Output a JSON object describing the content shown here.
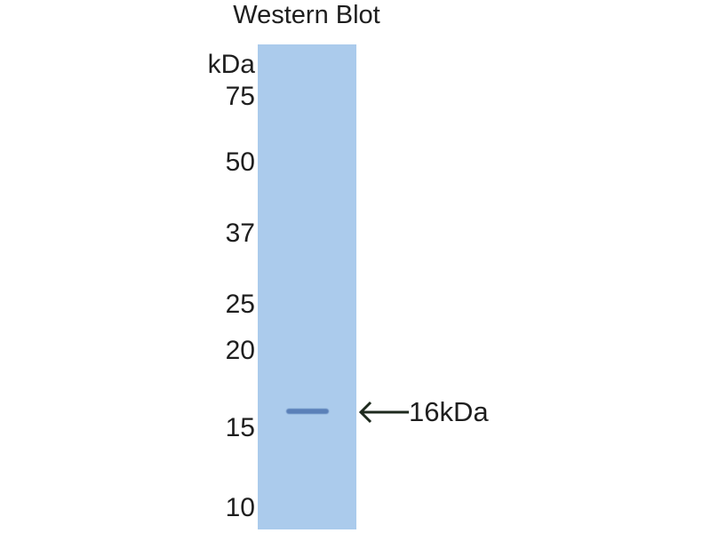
{
  "title": "Western Blot",
  "unit_label": "kDa",
  "markers": [
    "75",
    "50",
    "37",
    "25",
    "20",
    "15",
    "10"
  ],
  "band_label": "16kDa",
  "colors": {
    "lane": "#abcbec",
    "band": "#5a80b8",
    "arrow": "#1e2a1e"
  },
  "icons": {
    "arrow": "arrow-left-icon"
  }
}
